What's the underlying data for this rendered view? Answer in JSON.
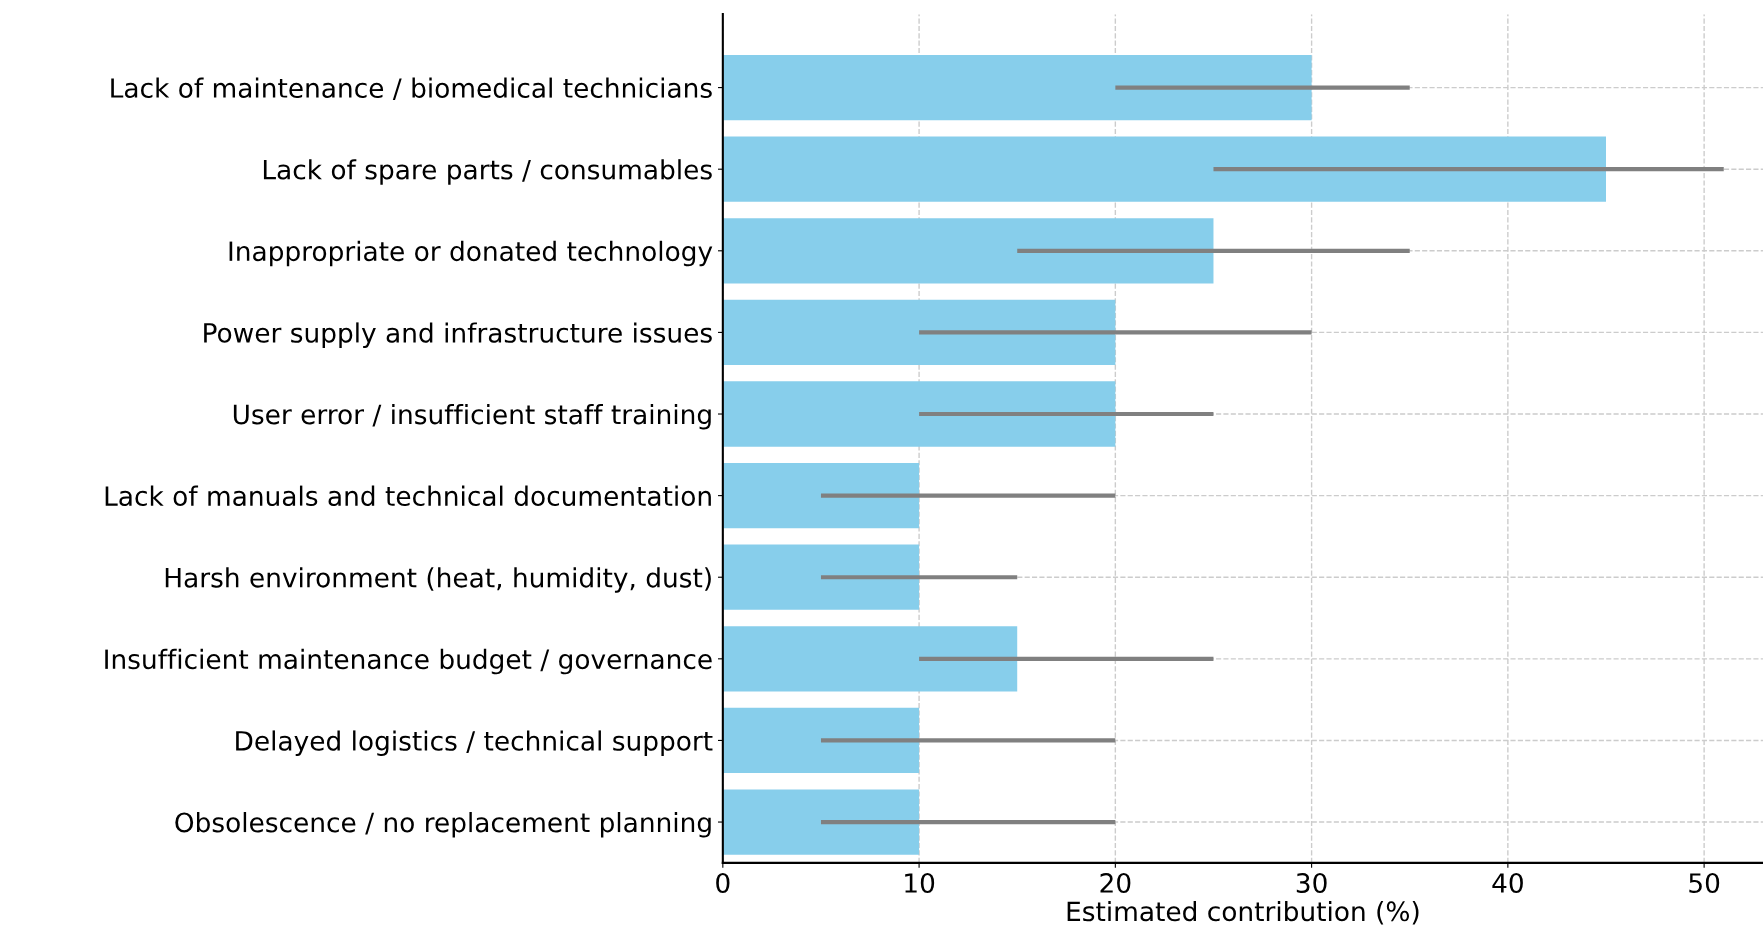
{
  "chart_data": {
    "type": "bar",
    "orientation": "horizontal",
    "xlabel": "Estimated contribution (%)",
    "categories": [
      "Lack of maintenance / biomedical technicians",
      "Lack of spare parts / consumables",
      "Inappropriate or donated technology",
      "Power supply and infrastructure issues",
      "User error / insufficient staff training",
      "Lack of manuals and technical documentation",
      "Harsh environment (heat, humidity, dust)",
      "Insufficient maintenance budget / governance",
      "Delayed logistics / technical support",
      "Obsolescence / no replacement planning"
    ],
    "values": [
      30,
      45,
      25,
      20,
      20,
      10,
      10,
      15,
      10,
      10
    ],
    "errors": [
      [
        20,
        35
      ],
      [
        25,
        51
      ],
      [
        15,
        35
      ],
      [
        10,
        30
      ],
      [
        10,
        25
      ],
      [
        5,
        20
      ],
      [
        5,
        15
      ],
      [
        10,
        25
      ],
      [
        5,
        20
      ],
      [
        5,
        20
      ]
    ],
    "color": "#87ceeb",
    "xlim": [
      0,
      53
    ],
    "xticks": [
      0,
      10,
      20,
      30,
      40,
      50
    ],
    "grid": true
  }
}
